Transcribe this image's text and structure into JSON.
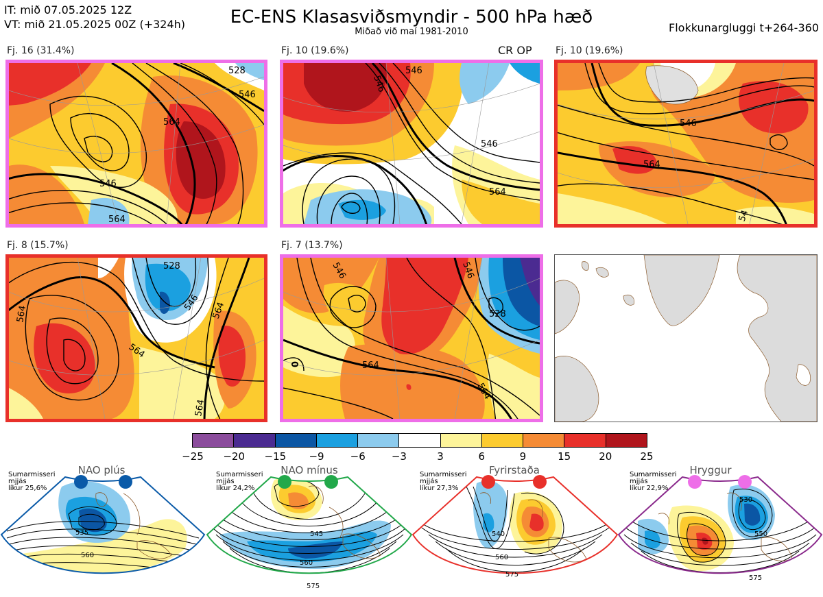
{
  "header": {
    "it": "IT: mið 07.05.2025 12Z",
    "vt": "VT: mið 21.05.2025 00Z  (+324h)",
    "title": "EC-ENS Klasasviðsmyndir - 500 hPa hæð",
    "subtitle": "Miðað við maí 1981-2010",
    "window": "Flokkunargluggi t+264-360"
  },
  "panels": [
    {
      "label": "Fj. 16 (31.4%)",
      "border": "#ee6ee8",
      "contours": [
        "546",
        "564",
        "528",
        "546",
        "564"
      ]
    },
    {
      "label": "Fj. 10 (19.6%)",
      "border": "#ee6ee8",
      "note": "CR OP",
      "contours": [
        "546",
        "546",
        "546",
        "564"
      ]
    },
    {
      "label": "Fj. 10 (19.6%)",
      "border": "#e8302a",
      "contours": [
        "546",
        "564",
        "54"
      ]
    },
    {
      "label": "Fj. 8 (15.7%)",
      "border": "#e8302a",
      "contours": [
        "564",
        "528",
        "546",
        "564",
        "564",
        "564"
      ]
    },
    {
      "label": "Fj. 7 (13.7%)",
      "border": "#ee6ee8",
      "contours": [
        "546",
        "546",
        "528",
        "564",
        "564",
        "0"
      ]
    }
  ],
  "colorbar": {
    "ticks": [
      "−25",
      "−20",
      "−15",
      "−9",
      "−6",
      "−3",
      "3",
      "6",
      "9",
      "15",
      "20",
      "25"
    ],
    "colors": [
      "#8b4c9c",
      "#4b2b91",
      "#0b56a4",
      "#1ba0e0",
      "#8ccbee",
      "#ffffff",
      "#fdf49a",
      "#fccb2f",
      "#f58b35",
      "#e8302a",
      "#b0151c"
    ]
  },
  "regimes": [
    {
      "title": "NAO plús",
      "note": [
        "Sumarmisseri",
        "mjjás",
        "líkur 25,6%"
      ],
      "color": "#0a5aa8",
      "contours": [
        "535",
        "560"
      ]
    },
    {
      "title": "NAO mínus",
      "note": [
        "Sumarmisseri",
        "mjjás",
        "líkur 24,2%"
      ],
      "color": "#22a84a",
      "contours": [
        "545",
        "560",
        "575"
      ]
    },
    {
      "title": "Fyrirstaða",
      "note": [
        "Sumarmisseri",
        "mjjás",
        "líkur 27,3%"
      ],
      "color": "#e8302a",
      "contours": [
        "540",
        "560",
        "575"
      ]
    },
    {
      "title": "Hryggur",
      "note": [
        "Sumarmisseri",
        "mjjás",
        "líkur 22,9%"
      ],
      "color": "#ee6ee8",
      "contours": [
        "530",
        "550",
        "575"
      ]
    }
  ]
}
